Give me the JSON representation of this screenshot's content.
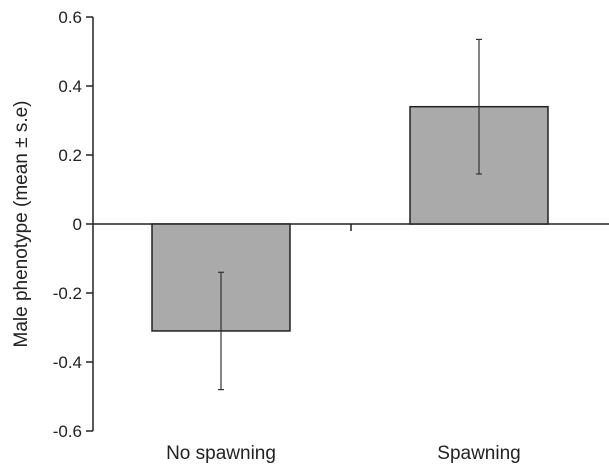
{
  "chart_data": {
    "type": "bar",
    "title": "",
    "xlabel": "",
    "ylabel": "Male phenotype (mean ± s.e)",
    "categories": [
      "No spawning",
      "Spawning"
    ],
    "values": [
      -0.31,
      0.34
    ],
    "error_upper": [
      -0.14,
      0.535
    ],
    "error_lower": [
      -0.48,
      0.145
    ],
    "ylim": [
      -0.6,
      0.6
    ],
    "yticks": [
      -0.6,
      -0.4,
      -0.2,
      0,
      0.2,
      0.4,
      0.6
    ],
    "ytick_labels": [
      "-0.6",
      "-0.4",
      "-0.2",
      "0",
      "0.2",
      "0.4",
      "0.6"
    ],
    "grid": false,
    "legend": "none",
    "colors": {
      "bar_fill": "#aaaaaa",
      "bar_stroke": "#222222",
      "axis": "#222222",
      "error_bar": "#333333"
    }
  }
}
